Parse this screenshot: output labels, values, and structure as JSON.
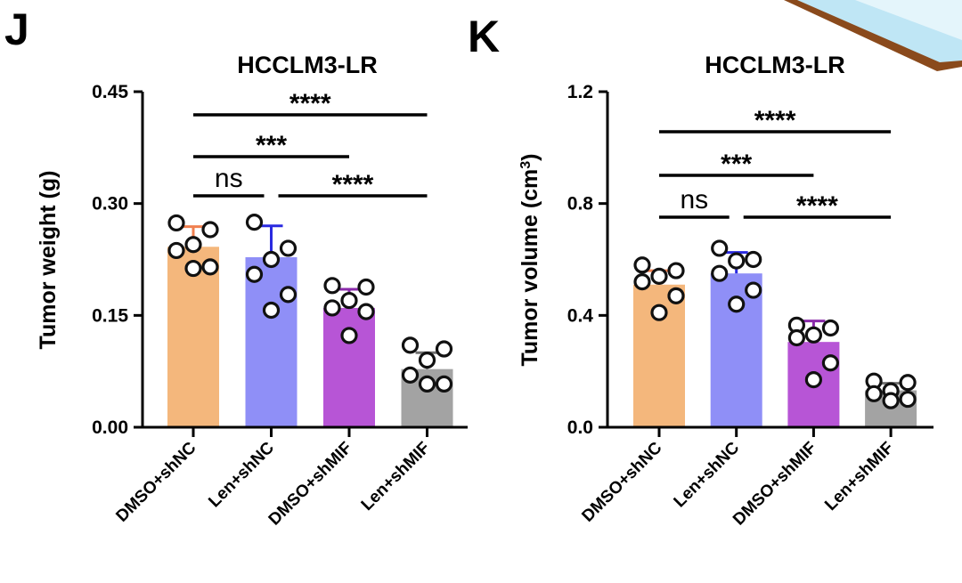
{
  "chart_data": [
    {
      "type": "bar",
      "panel_label": "J",
      "title": "HCCLM3-LR",
      "ylabel": "Tumor weight (g)",
      "ylim": [
        0,
        0.45
      ],
      "yticks": [
        "0.00",
        "0.15",
        "0.30",
        "0.45"
      ],
      "categories": [
        "DMSO+shNC",
        "Len+shNC",
        "DMSO+shMIF",
        "Len+shMIF"
      ],
      "values": [
        0.242,
        0.228,
        0.16,
        0.078
      ],
      "errors": [
        0.027,
        0.042,
        0.025,
        0.022
      ],
      "colors": [
        "#f4b77c",
        "#8f8ff7",
        "#b755d6",
        "#a3a3a3"
      ],
      "error_colors": [
        "#f08050",
        "#2a2ae0",
        "#8a2aaa",
        "#707070"
      ],
      "points": [
        [
          0.274,
          0.265,
          0.245,
          0.237,
          0.215,
          0.213
        ],
        [
          0.275,
          0.24,
          0.225,
          0.205,
          0.178,
          0.157
        ],
        [
          0.19,
          0.188,
          0.17,
          0.16,
          0.155,
          0.123
        ],
        [
          0.11,
          0.105,
          0.09,
          0.07,
          0.058,
          0.058
        ]
      ],
      "significance": [
        {
          "from": 0,
          "to": 3,
          "label": "****"
        },
        {
          "from": 0,
          "to": 2,
          "label": "***"
        },
        {
          "from": 0,
          "to": 1,
          "label": "ns"
        },
        {
          "from": 1,
          "to": 3,
          "label": "****"
        }
      ]
    },
    {
      "type": "bar",
      "panel_label": "K",
      "title": "HCCLM3-LR",
      "ylabel": "Tumor volume (cm",
      "ylabel_sup": "3",
      "ylabel_end": ")",
      "ylim": [
        0,
        1.2
      ],
      "yticks": [
        "0.0",
        "0.4",
        "0.8",
        "1.2"
      ],
      "categories": [
        "DMSO+shNC",
        "Len+shNC",
        "DMSO+shMIF",
        "Len+shMIF"
      ],
      "values": [
        0.51,
        0.55,
        0.305,
        0.132
      ],
      "errors": [
        0.05,
        0.075,
        0.075,
        0.025
      ],
      "colors": [
        "#f4b77c",
        "#8f8ff7",
        "#b755d6",
        "#a3a3a3"
      ],
      "error_colors": [
        "#f08050",
        "#2a2ae0",
        "#8a2aaa",
        "#707070"
      ],
      "points": [
        [
          0.58,
          0.56,
          0.54,
          0.52,
          0.47,
          0.41
        ],
        [
          0.64,
          0.6,
          0.595,
          0.55,
          0.49,
          0.44
        ],
        [
          0.365,
          0.355,
          0.33,
          0.32,
          0.23,
          0.17
        ],
        [
          0.165,
          0.16,
          0.13,
          0.12,
          0.1,
          0.095
        ]
      ],
      "significance": [
        {
          "from": 0,
          "to": 3,
          "label": "****"
        },
        {
          "from": 0,
          "to": 2,
          "label": "***"
        },
        {
          "from": 0,
          "to": 1,
          "label": "ns"
        },
        {
          "from": 1,
          "to": 3,
          "label": "****"
        }
      ]
    }
  ]
}
